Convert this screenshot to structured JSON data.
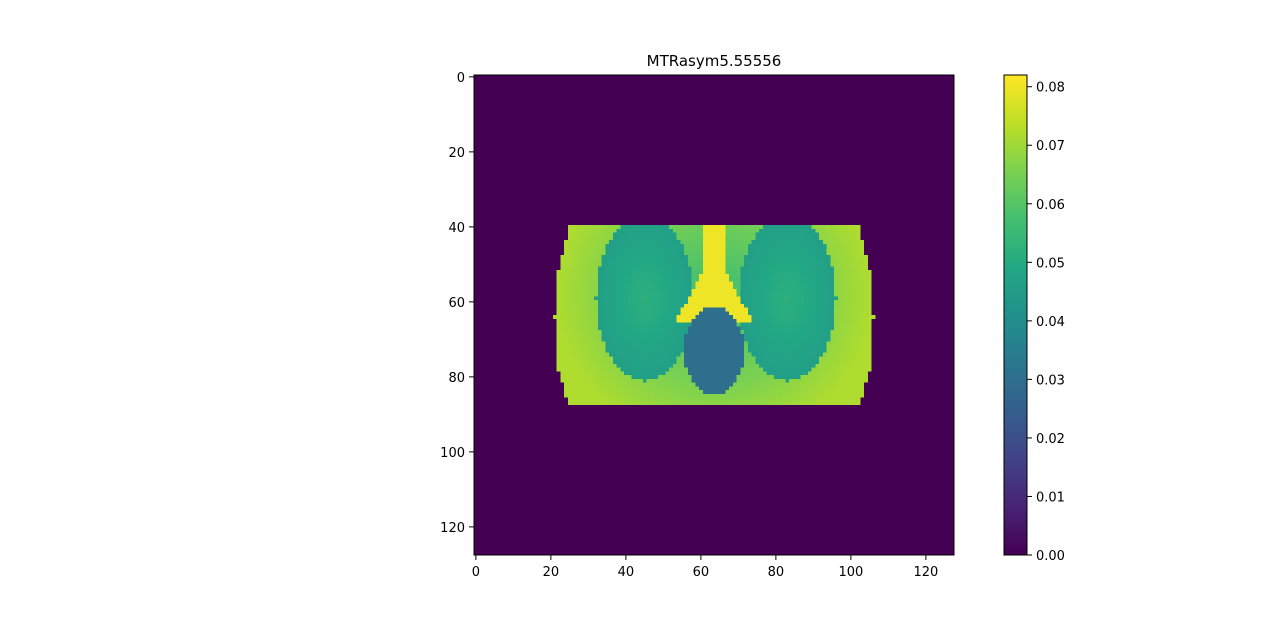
{
  "chart_data": {
    "type": "heatmap",
    "title": "MTRasym5.55556",
    "xlabel": "",
    "ylabel": "",
    "image_size": [
      128,
      128
    ],
    "xlim": [
      -0.5,
      127.5
    ],
    "ylim": [
      127.5,
      -0.5
    ],
    "x_ticks": [
      0,
      20,
      40,
      60,
      80,
      100,
      120
    ],
    "y_ticks": [
      0,
      20,
      40,
      60,
      80,
      100,
      120
    ],
    "colormap": "viridis",
    "colorbar": {
      "vmin": 0.0,
      "vmax": 0.082,
      "ticks": [
        0.0,
        0.01,
        0.02,
        0.03,
        0.04,
        0.05,
        0.06,
        0.07,
        0.08
      ],
      "tick_labels": [
        "0.00",
        "0.01",
        "0.02",
        "0.03",
        "0.04",
        "0.05",
        "0.06",
        "0.07",
        "0.08"
      ]
    },
    "regions": [
      {
        "label": "background",
        "value": 0.0
      },
      {
        "label": "body",
        "rows": [
          40,
          88
        ],
        "cols": [
          22,
          106
        ],
        "value_center": 0.056,
        "value_edge": 0.072
      },
      {
        "label": "left-lobe",
        "center": [
          45,
          59
        ],
        "radius": [
          13,
          22
        ],
        "value_center": 0.052,
        "value_edge": 0.046
      },
      {
        "label": "right-lobe",
        "center": [
          83,
          59
        ],
        "radius": [
          13,
          22
        ],
        "value_center": 0.052,
        "value_edge": 0.046
      },
      {
        "label": "central-strip",
        "value": 0.08
      },
      {
        "label": "central-ellipse",
        "center": [
          63.5,
          73
        ],
        "radius": [
          8,
          12
        ],
        "value": 0.03
      }
    ]
  }
}
